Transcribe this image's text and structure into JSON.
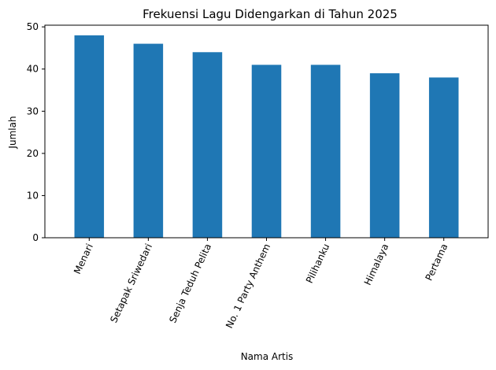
{
  "chart_data": {
    "type": "bar",
    "title": "Frekuensi Lagu Didengarkan di Tahun 2025",
    "xlabel": "Nama Artis",
    "ylabel": "Jumlah",
    "categories": [
      "Menari",
      "Setapak Sriwedari",
      "Senja Teduh Pelita",
      "No. 1 Party Anthem",
      "Pilihanku",
      "Himalaya",
      "Pertama"
    ],
    "values": [
      48,
      46,
      44,
      41,
      41,
      39,
      38
    ],
    "ylim": [
      0,
      50.4
    ],
    "yticks": [
      0,
      10,
      20,
      30,
      40,
      50
    ],
    "grid": false,
    "legend": "none",
    "bar_color": "#1f77b4",
    "xtick_rotation": 65
  }
}
